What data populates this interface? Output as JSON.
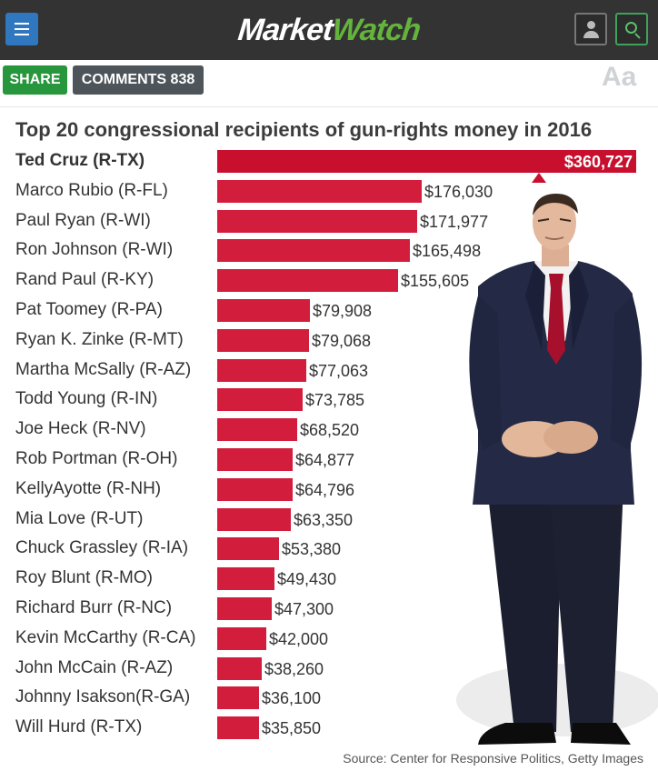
{
  "header": {
    "logo_part1": "Market",
    "logo_part2": "Watch",
    "colors": {
      "bar": "#333333",
      "menu": "#2f78bf",
      "accent": "#64b33c"
    },
    "icons": [
      "menu-icon",
      "user-icon",
      "search-icon"
    ]
  },
  "actions": {
    "share_label": "SHARE",
    "comments_label": "COMMENTS 838",
    "text_size_label": "Aa"
  },
  "article": {
    "image_credit": "Source: Center for Responsive Politics, Getty Images"
  },
  "chart_data": {
    "type": "bar",
    "orientation": "horizontal",
    "title": "Top 20 congressional recipients of gun-rights money in 2016",
    "categories": [
      "Ted Cruz (R-TX)",
      "Marco Rubio (R-FL)",
      "Paul Ryan (R-WI)",
      "Ron Johnson (R-WI)",
      "Rand Paul (R-KY)",
      "Pat Toomey (R-PA)",
      "Ryan K. Zinke (R-MT)",
      "Martha McSally (R-AZ)",
      "Todd Young (R-IN)",
      "Joe Heck (R-NV)",
      "Rob Portman (R-OH)",
      "KellyAyotte (R-NH)",
      "Mia Love (R-UT)",
      "Chuck Grassley (R-IA)",
      "Roy Blunt (R-MO)",
      "Richard Burr (R-NC)",
      "Kevin McCarthy (R-CA)",
      "John McCain (R-AZ)",
      "Johnny  Isakson(R-GA)",
      "Will Hurd (R-TX)"
    ],
    "values": [
      360727,
      176030,
      171977,
      165498,
      155605,
      79908,
      79068,
      77063,
      73785,
      68520,
      64877,
      64796,
      63350,
      53380,
      49430,
      47300,
      42000,
      38260,
      36100,
      35850
    ],
    "labels": [
      "$360,727",
      "$176,030",
      "$171,977",
      "$165,498",
      "$155,605",
      "$79,908",
      "$79,068",
      "$77,063",
      "$73,785",
      "$68,520",
      "$64,877",
      "$64,796",
      "$63,350",
      "$53,380",
      "$49,430",
      "$47,300",
      "$42,000",
      "$38,260",
      "$36,100",
      "$35,850"
    ],
    "xlim": [
      0,
      360727
    ],
    "bar_color": "#d21e3c",
    "highlight_color": "#c8102e"
  }
}
